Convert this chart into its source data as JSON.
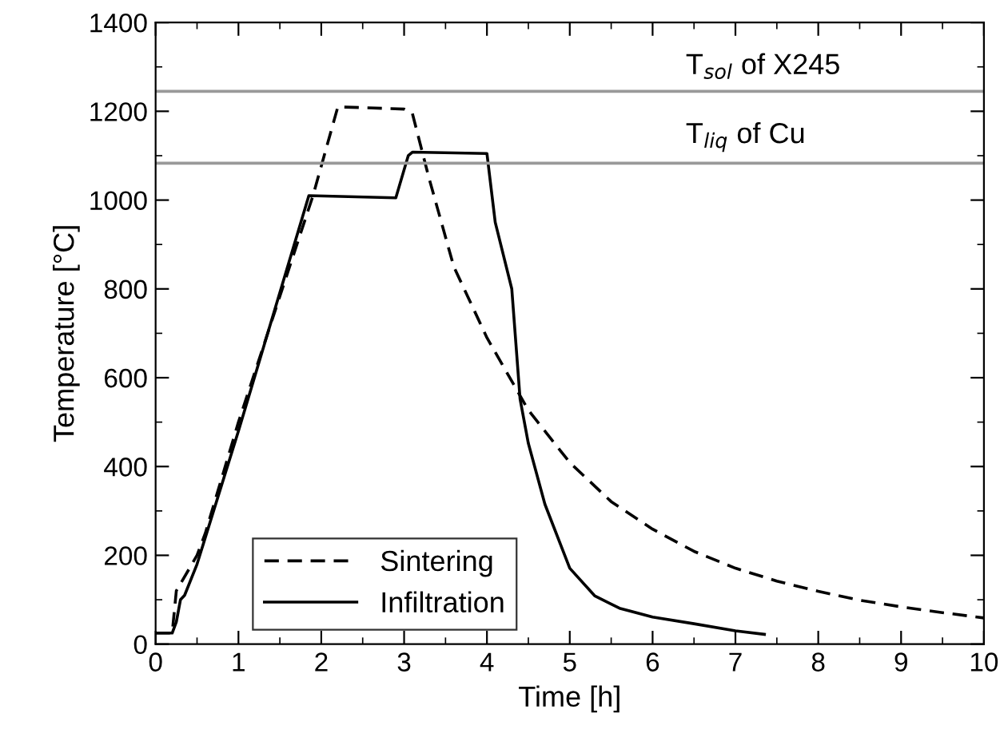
{
  "chart_data": {
    "type": "line",
    "xlabel": "Time [h]",
    "ylabel": "Temperature [°C]",
    "xlim": [
      0,
      10
    ],
    "ylim": [
      0,
      1400
    ],
    "xticks": [
      0,
      1,
      2,
      3,
      4,
      5,
      6,
      7,
      8,
      9,
      10
    ],
    "yticks": [
      0,
      200,
      400,
      600,
      800,
      1000,
      1200,
      1400
    ],
    "grid": false,
    "legend": "bottom left",
    "marker": "none",
    "series": [
      {
        "name": "Sintering",
        "color": "#000000",
        "line_style": "dashed",
        "x": [
          0,
          0.2,
          0.25,
          0.5,
          0.6,
          1,
          1.9,
          2.2,
          3.0,
          3.1,
          3.3,
          3.6,
          4,
          4.5,
          5,
          5.5,
          6,
          6.5,
          7,
          7.5,
          8,
          8.5,
          9,
          9.5,
          10
        ],
        "values": [
          25,
          25,
          120,
          200,
          250,
          500,
          1010,
          1210,
          1205,
          1195,
          1050,
          850,
          690,
          527,
          409,
          321,
          259,
          209,
          171,
          142,
          119,
          99,
          84,
          71,
          59
        ]
      },
      {
        "name": "Infiltration",
        "color": "#000000",
        "line_style": "solid",
        "x": [
          0,
          0.2,
          0.25,
          0.3,
          0.35,
          0.5,
          1,
          1.85,
          2.9,
          3.05,
          3.1,
          4.0,
          4.1,
          4.3,
          4.4,
          4.5,
          4.7,
          5,
          5.3,
          5.6,
          6,
          6.5,
          7,
          7.35
        ],
        "values": [
          25,
          25,
          50,
          100,
          110,
          180,
          480,
          1010,
          1005,
          1100,
          1108,
          1105,
          950,
          800,
          552,
          452,
          315,
          171,
          109,
          81,
          61,
          46,
          30,
          22
        ]
      }
    ],
    "ref_lines": [
      {
        "axis": "y",
        "value": 1245,
        "label": "T$_{sol}$ of X245",
        "color": "#999999"
      },
      {
        "axis": "y",
        "value": 1083,
        "label": "T$_{liq}$ of Cu",
        "color": "#999999"
      }
    ]
  }
}
